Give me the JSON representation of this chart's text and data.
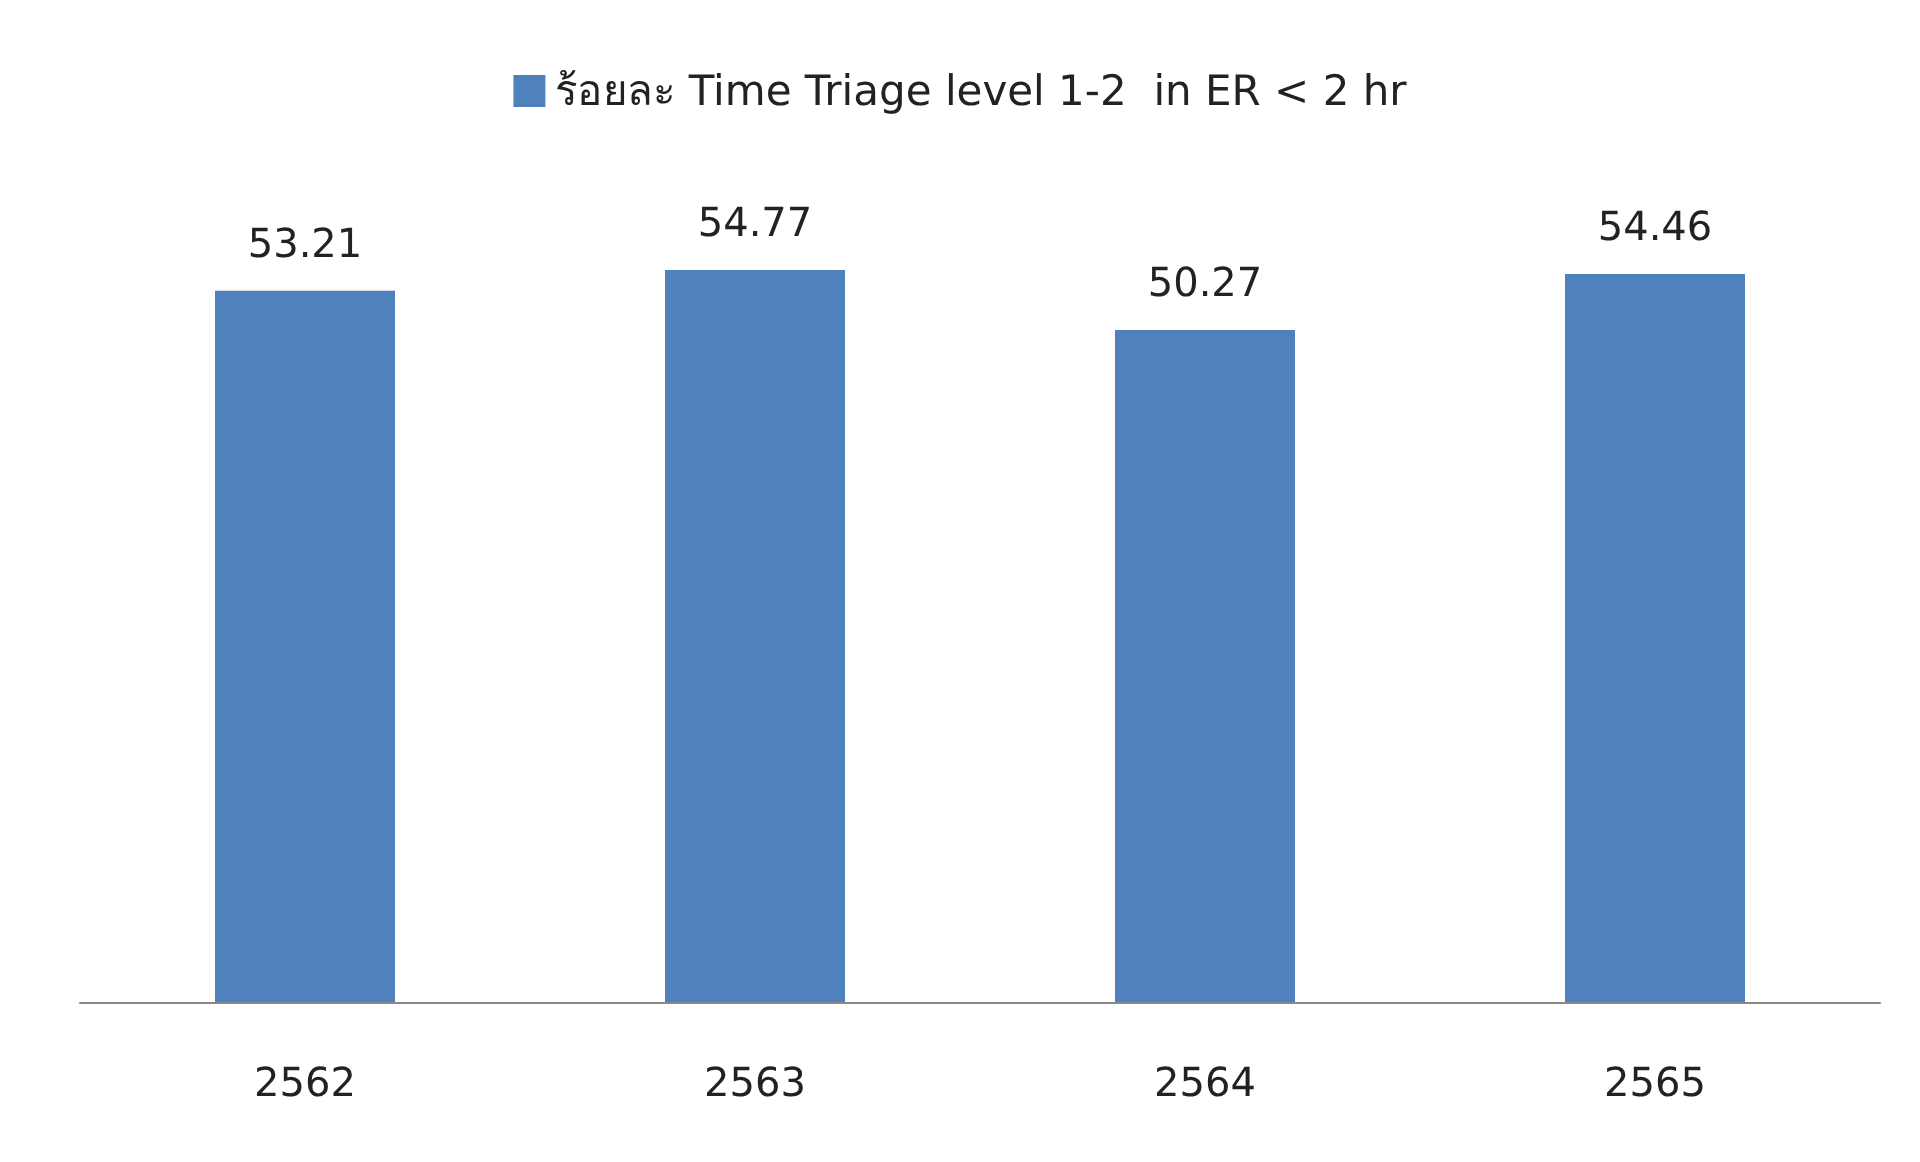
{
  "chart_data": {
    "type": "bar",
    "categories": [
      "2562",
      "2563",
      "2564",
      "2565"
    ],
    "series": [
      {
        "name": "ร้อยละ Time Triage level 1-2  in ER < 2 hr",
        "color": "#4f81bd",
        "values": [
          53.21,
          54.77,
          50.27,
          54.46
        ]
      }
    ],
    "data_labels": true,
    "legend": "top"
  }
}
